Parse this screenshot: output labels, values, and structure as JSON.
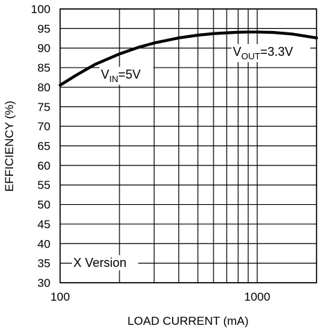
{
  "chart_data": {
    "type": "line",
    "title": "",
    "xlabel": "LOAD CURRENT (mA)",
    "ylabel": "EFFICIENCY (%)",
    "x_scale": "log",
    "xlim": [
      100,
      2000
    ],
    "ylim": [
      30,
      100
    ],
    "x_tick_labels": [
      "100",
      "1000"
    ],
    "y_ticks": [
      30,
      35,
      40,
      45,
      50,
      55,
      60,
      65,
      70,
      75,
      80,
      85,
      90,
      95,
      100
    ],
    "grid": true,
    "series": [
      {
        "x": [
          100,
          120,
          150,
          200,
          250,
          300,
          400,
          500,
          600,
          700,
          800,
          900,
          1000,
          1200,
          1500,
          2000
        ],
        "y": [
          80.5,
          83,
          85.8,
          88.5,
          90.2,
          91.3,
          92.6,
          93.3,
          93.7,
          93.9,
          94.05,
          94.1,
          94.1,
          94.0,
          93.6,
          92.6
        ]
      }
    ],
    "annotations": {
      "vin": {
        "main": "V",
        "sub": "IN",
        "rest": "=5V"
      },
      "vout": {
        "main": "V",
        "sub": "OUT",
        "rest": "=3.3V"
      },
      "version": "X Version"
    }
  }
}
